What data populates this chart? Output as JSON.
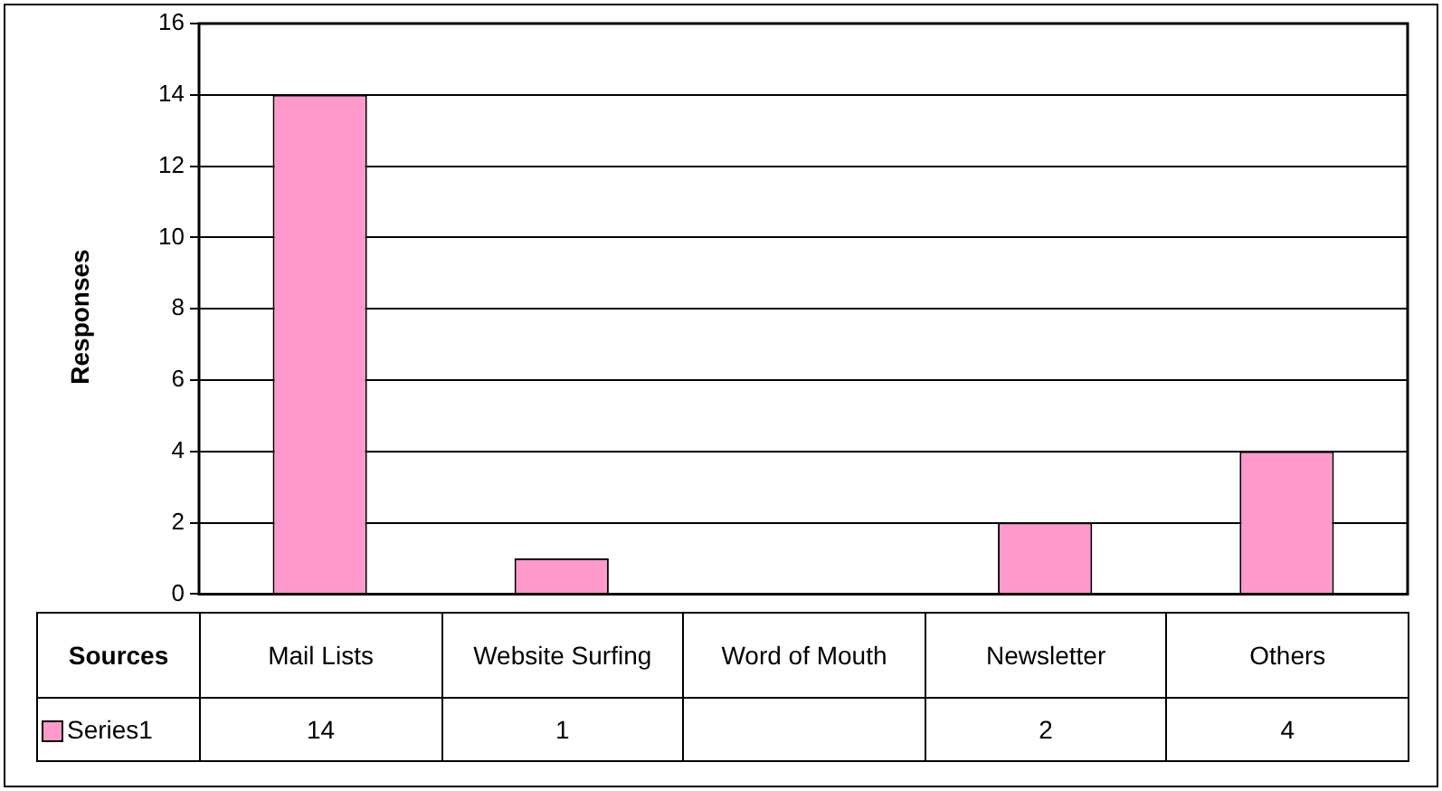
{
  "chart_data": {
    "type": "bar",
    "xlabel": "Sources",
    "ylabel": "Responses",
    "categories": [
      "Mail Lists",
      "Website Surfing",
      "Word of Mouth",
      "Newsletter",
      "Others"
    ],
    "series": [
      {
        "name": "Series1",
        "color": "#ff99cc",
        "values": [
          14,
          1,
          null,
          2,
          4
        ]
      }
    ],
    "ylim": [
      0,
      16
    ],
    "yticks": [
      0,
      2,
      4,
      6,
      8,
      10,
      12,
      14,
      16
    ],
    "grid": "y",
    "legend": "bottom",
    "data_labels": true
  }
}
